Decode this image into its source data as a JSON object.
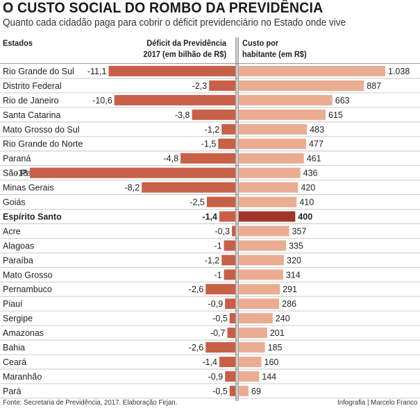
{
  "header": {
    "title": "O CUSTO SOCIAL DO ROMBO DA PREVIDÊNCIA",
    "subtitle": "Quanto cada cidadão paga para cobrir o déficit previdenciário no Estado onde vive",
    "col_states": "Estados",
    "col_deficit_line1": "Déficit da Previdência",
    "col_deficit_line2": "2017 (em bilhão de R$)",
    "col_cost_line1": "Custo por",
    "col_cost_line2": "habitante (em R$)"
  },
  "footer": {
    "source": "Fonte: Secretaria de Previdência, 2017. Elaboração Firjan.",
    "credit": "Infografia | Marcelo Franco"
  },
  "colors": {
    "deficit_bar": "#c86048",
    "cost_bar": "#eaad92",
    "highlight_cost_bar": "#a43526",
    "row_divider": "#bdbdbd",
    "axis": "#555555"
  },
  "chart_data": {
    "type": "bar",
    "layout": "butterfly",
    "categories": [
      "Rio Grande do Sul",
      "Distrito Federal",
      "Rio de Janeiro",
      "Santa Catarina",
      "Mato Grosso do Sul",
      "Rio Grande do Norte",
      "Paraná",
      "São Paulo",
      "Minas Gerais",
      "Goiás",
      "Espírito Santo",
      "Acre",
      "Alagoas",
      "Paraíba",
      "Mato Grosso",
      "Pernambuco",
      "Piauí",
      "Sergipe",
      "Amazonas",
      "Bahia",
      "Ceará",
      "Maranhão",
      "Pará"
    ],
    "highlight": "Espírito Santo",
    "series": [
      {
        "name": "Déficit da Previdência 2017 (em bilhão de R$)",
        "values": [
          -11.1,
          -2.3,
          -10.6,
          -3.8,
          -1.2,
          -1.5,
          -4.8,
          -18,
          -8.2,
          -2.5,
          -1.4,
          -0.3,
          -1,
          -1.2,
          -1,
          -2.6,
          -0.9,
          -0.5,
          -0.7,
          -2.6,
          -1.4,
          -0.9,
          -0.5
        ],
        "labels": [
          "-11,1",
          "-2,3",
          "-10,6",
          "-3,8",
          "-1,2",
          "-1,5",
          "-4,8",
          "-18",
          "-8,2",
          "-2,5",
          "-1,4",
          "-0,3",
          "-1",
          "-1,2",
          "-1",
          "-2,6",
          "-0,9",
          "-0,5",
          "-0,7",
          "-2,6",
          "-1,4",
          "-0,9",
          "-0,5"
        ]
      },
      {
        "name": "Custo por habitante (em R$)",
        "values": [
          1038,
          887,
          663,
          615,
          483,
          477,
          461,
          436,
          420,
          410,
          400,
          357,
          335,
          320,
          314,
          291,
          286,
          240,
          201,
          185,
          160,
          144,
          69
        ],
        "labels": [
          "1.038",
          "887",
          "663",
          "615",
          "483",
          "477",
          "461",
          "436",
          "420",
          "410",
          "400",
          "357",
          "335",
          "320",
          "314",
          "291",
          "286",
          "240",
          "201",
          "185",
          "160",
          "144",
          "69"
        ]
      }
    ]
  }
}
